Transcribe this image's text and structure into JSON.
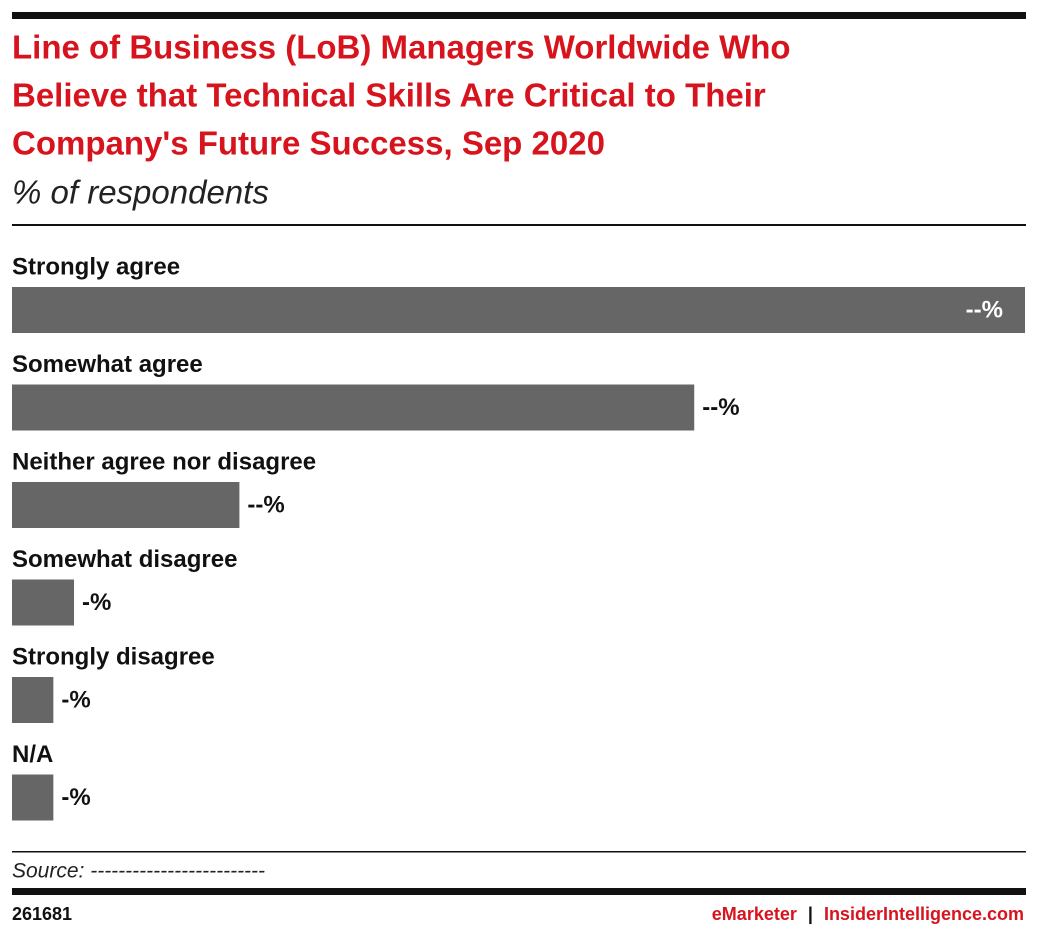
{
  "chart_data": {
    "type": "bar",
    "orientation": "horizontal",
    "title": [
      "Line of Business (LoB) Managers Worldwide Who",
      "Believe that Technical Skills Are Critical to Their",
      "Company's Future Success, Sep 2020"
    ],
    "subtitle": "% of respondents",
    "categories": [
      "Strongly agree",
      "Somewhat agree",
      "Neither agree nor disagree",
      "Somewhat disagree",
      "Strongly disagree",
      "N/A"
    ],
    "values": [
      49,
      33,
      11,
      3,
      2,
      2
    ],
    "value_labels": [
      "--%",
      "--%",
      "--%",
      "-%",
      "-%",
      "-%"
    ],
    "color": "#666666",
    "source": "Source: -------------------------"
  },
  "footer": {
    "id": "261681",
    "brand": "eMarketer",
    "separator": "|",
    "site": "InsiderIntelligence.com"
  }
}
